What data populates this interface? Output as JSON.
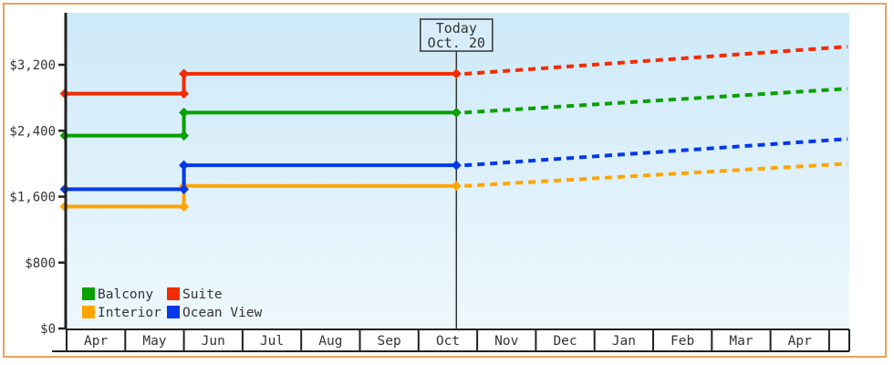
{
  "page": {
    "background_color": "#ffffff",
    "frame_color": "#e9a25a",
    "axis_color": "#222222",
    "grid_text_color": "#333333"
  },
  "chart_data": {
    "type": "line",
    "title": "",
    "xlabel": "",
    "ylabel": "",
    "y_axis": {
      "tick_values": [
        0,
        800,
        1600,
        2400,
        3200
      ],
      "tick_labels": [
        "$0",
        "$800",
        "$1,600",
        "$2,400",
        "$3,200"
      ],
      "ylim": [
        0,
        3200
      ]
    },
    "x_axis": {
      "months": [
        "Apr",
        "May",
        "Jun",
        "Jul",
        "Aug",
        "Sep",
        "Oct",
        "Nov",
        "Dec",
        "Jan",
        "Feb",
        "Mar",
        "Apr"
      ]
    },
    "today_box": {
      "line1": "Today",
      "line2": "Oct. 20",
      "month": "Oct",
      "day": 20,
      "fill": "#d7eefa",
      "border": "#333333"
    },
    "step_month": "Jun",
    "series": [
      {
        "name": "Balcony",
        "color": "#09a000",
        "price_start": 2340,
        "price_after_jun": 2620,
        "forecast_end": 2910
      },
      {
        "name": "Suite",
        "color": "#f32b00",
        "price_start": 2850,
        "price_after_jun": 3090,
        "forecast_end": 3420
      },
      {
        "name": "Interior",
        "color": "#ffa400",
        "price_start": 1480,
        "price_after_jun": 1730,
        "forecast_end": 2000
      },
      {
        "name": "Ocean View",
        "color": "#0438e8",
        "price_start": 1690,
        "price_after_jun": 1980,
        "forecast_end": 2300
      }
    ],
    "legend": {
      "layout": "2x2",
      "entries": [
        "Balcony",
        "Suite",
        "Interior",
        "Ocean View"
      ]
    },
    "plot_background_gradient": [
      "#cde9f8",
      "#eef8fd"
    ],
    "line_style_actual": "solid",
    "line_style_forecast": "dashed"
  }
}
